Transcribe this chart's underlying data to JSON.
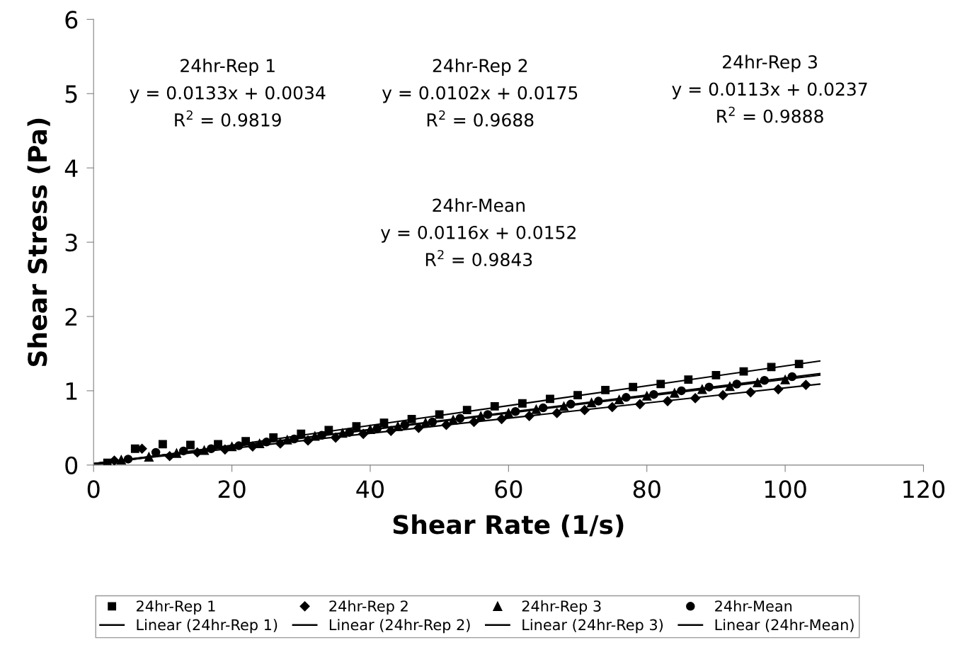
{
  "chart_data": {
    "type": "scatter",
    "xlabel": "Shear Rate (1/s)",
    "ylabel": "Shear Stress (Pa)",
    "xlim": [
      0,
      120
    ],
    "xticks": [
      0,
      20,
      40,
      60,
      80,
      100,
      120
    ],
    "ylim": [
      0,
      6
    ],
    "yticks": [
      0,
      1,
      2,
      3,
      4,
      5,
      6
    ],
    "legend": "bottom",
    "series": [
      {
        "name": "24hr-Rep 1",
        "color": "#000000",
        "marker": "square",
        "x": [
          2,
          6,
          10,
          14,
          18,
          22,
          26,
          30,
          34,
          38,
          42,
          46,
          50,
          54,
          58,
          62,
          66,
          70,
          74,
          78,
          82,
          86,
          90,
          94,
          98,
          102
        ],
        "values": [
          0.03,
          0.22,
          0.28,
          0.27,
          0.28,
          0.32,
          0.37,
          0.42,
          0.47,
          0.52,
          0.57,
          0.62,
          0.68,
          0.74,
          0.79,
          0.83,
          0.89,
          0.94,
          1.01,
          1.05,
          1.09,
          1.15,
          1.21,
          1.26,
          1.32,
          1.36
        ]
      },
      {
        "name": "24hr-Rep 2",
        "color": "#000000",
        "marker": "diamond",
        "x": [
          3,
          7,
          11,
          15,
          19,
          23,
          27,
          31,
          35,
          39,
          43,
          47,
          51,
          55,
          59,
          63,
          67,
          71,
          75,
          79,
          83,
          87,
          91,
          95,
          99,
          103
        ],
        "values": [
          0.06,
          0.22,
          0.12,
          0.17,
          0.21,
          0.25,
          0.29,
          0.33,
          0.37,
          0.42,
          0.46,
          0.5,
          0.54,
          0.58,
          0.62,
          0.66,
          0.7,
          0.74,
          0.78,
          0.82,
          0.86,
          0.9,
          0.94,
          0.98,
          1.02,
          1.08
        ]
      },
      {
        "name": "24hr-Rep 3",
        "color": "#000000",
        "marker": "triangle",
        "x": [
          4,
          8,
          12,
          16,
          20,
          24,
          28,
          32,
          36,
          40,
          44,
          48,
          52,
          56,
          60,
          64,
          68,
          72,
          76,
          80,
          84,
          88,
          92,
          96,
          100
        ],
        "values": [
          0.07,
          0.11,
          0.16,
          0.2,
          0.25,
          0.29,
          0.34,
          0.39,
          0.43,
          0.48,
          0.52,
          0.57,
          0.61,
          0.66,
          0.7,
          0.75,
          0.79,
          0.84,
          0.88,
          0.93,
          0.97,
          1.02,
          1.06,
          1.11,
          1.15
        ]
      },
      {
        "name": "24hr-Mean",
        "color": "#000000",
        "marker": "circle",
        "x": [
          5,
          9,
          13,
          17,
          21,
          25,
          29,
          33,
          37,
          41,
          45,
          49,
          53,
          57,
          61,
          65,
          69,
          73,
          77,
          81,
          85,
          89,
          93,
          97,
          101
        ],
        "values": [
          0.08,
          0.17,
          0.19,
          0.22,
          0.26,
          0.31,
          0.35,
          0.4,
          0.44,
          0.49,
          0.54,
          0.58,
          0.63,
          0.68,
          0.72,
          0.77,
          0.82,
          0.86,
          0.91,
          0.95,
          1.0,
          1.05,
          1.09,
          1.14,
          1.19
        ]
      },
      {
        "name": "Linear (24hr-Rep 1)",
        "type": "line",
        "color": "#000000",
        "marker": "none",
        "line_style": "solid",
        "x": [
          0,
          105
        ],
        "values": [
          0.0,
          1.4
        ]
      },
      {
        "name": "Linear (24hr-Rep 2)",
        "type": "line",
        "color": "#000000",
        "marker": "none",
        "line_style": "solid",
        "x": [
          0,
          105
        ],
        "values": [
          0.02,
          1.09
        ]
      },
      {
        "name": "Linear (24hr-Rep 3)",
        "type": "line",
        "color": "#000000",
        "marker": "none",
        "line_style": "solid",
        "x": [
          0,
          105
        ],
        "values": [
          0.02,
          1.21
        ]
      },
      {
        "name": "Linear (24hr-Mean)",
        "type": "line",
        "color": "#000000",
        "marker": "none",
        "line_style": "solid",
        "x": [
          0,
          105
        ],
        "values": [
          0.02,
          1.23
        ]
      }
    ],
    "annotations": [
      "24hr-Rep 1\ny = 0.0133x + 0.0034\nR$^{2}$ = 0.9819",
      "24hr-Rep 2\ny = 0.0102x + 0.0175\nR$^{2}$ = 0.9688",
      "24hr-Rep 3\ny = 0.0113x + 0.0237\nR$^{2}$ = 0.9888",
      "24hr-Mean\ny = 0.0116x + 0.0152\nR$^{2}$ = 0.9843"
    ]
  }
}
